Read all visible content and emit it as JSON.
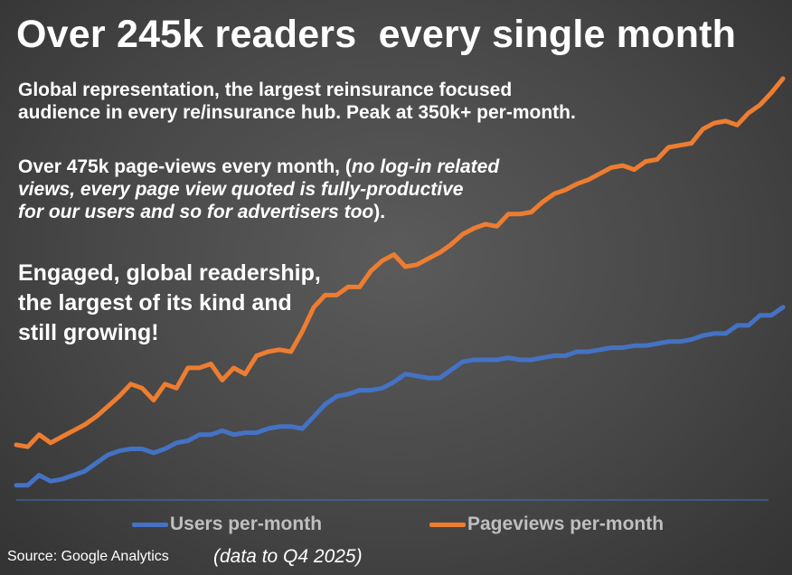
{
  "header": {
    "title": "Over 245k readers  every single month"
  },
  "text": {
    "p1_line1": "Global representation, the largest reinsurance focused",
    "p1_line2": "audience in every re/insurance hub. Peak at 350k+ per-month.",
    "p2_lead": "Over 475k page-views every month, (",
    "p2_italic1": "no log-in related",
    "p2_italic2": "views, every page view quoted is fully-productive",
    "p2_italic3": "for our users and so for advertisers too",
    "p2_tail": ").",
    "p3_line1": "Engaged, global readership,",
    "p3_line2": "the largest of its kind and",
    "p3_line3": "still growing!"
  },
  "footer": {
    "source": "Source: Google Analytics",
    "data_note": "(data to Q4 2025)"
  },
  "chart_data": {
    "type": "line",
    "grid": false,
    "legend_position": "bottom",
    "x": [
      1,
      2,
      3,
      4,
      5,
      6,
      7,
      8,
      9,
      10,
      11,
      12,
      13,
      14,
      15,
      16,
      17,
      18,
      19,
      20,
      21,
      22,
      23,
      24,
      25,
      26,
      27,
      28,
      29,
      30,
      31,
      32,
      33,
      34,
      35,
      36,
      37,
      38,
      39,
      40,
      41,
      42,
      43,
      44,
      45,
      46,
      47,
      48,
      49,
      50,
      51,
      52,
      53,
      54,
      55,
      56,
      57,
      58,
      59,
      60,
      61,
      62,
      63,
      64,
      65,
      66,
      67,
      68
    ],
    "series": [
      {
        "name": "Users per-month",
        "color": "#4472c4",
        "values": [
          22,
          22,
          27,
          24,
          25,
          27,
          29,
          33,
          37,
          39,
          40,
          40,
          38,
          40,
          43,
          44,
          47,
          47,
          49,
          47,
          48,
          48,
          50,
          51,
          51,
          50,
          56,
          62,
          66,
          67,
          69,
          69,
          70,
          73,
          77,
          76,
          75,
          75,
          79,
          83,
          84,
          84,
          84,
          85,
          84,
          84,
          85,
          86,
          86,
          88,
          88,
          89,
          90,
          90,
          91,
          91,
          92,
          93,
          93,
          94,
          96,
          97,
          97,
          101,
          101,
          106,
          106,
          110
        ]
      },
      {
        "name": "Pageviews per-month",
        "color": "#ed7d31",
        "values": [
          42,
          41,
          47,
          43,
          46,
          49,
          52,
          56,
          61,
          66,
          72,
          70,
          64,
          72,
          70,
          80,
          80,
          82,
          74,
          80,
          77,
          86,
          88,
          89,
          88,
          98,
          110,
          116,
          116,
          120,
          120,
          128,
          133,
          136,
          130,
          131,
          134,
          137,
          141,
          146,
          149,
          151,
          150,
          156,
          156,
          157,
          162,
          166,
          168,
          171,
          173,
          176,
          179,
          180,
          178,
          182,
          183,
          189,
          190,
          191,
          198,
          201,
          202,
          200,
          206,
          210,
          216,
          223
        ]
      }
    ],
    "ylim": [
      0,
      235
    ]
  }
}
